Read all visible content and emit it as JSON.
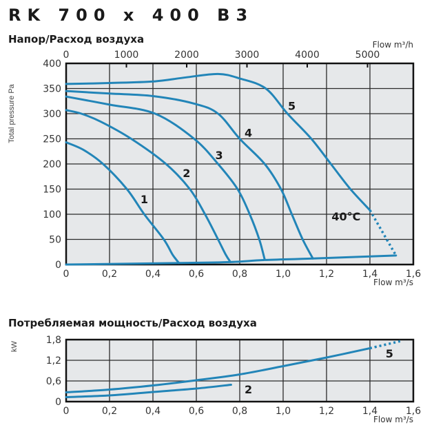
{
  "title": "RK 700 x 400 B3",
  "colors": {
    "curve": "#2285b8",
    "plot_bg": "#e6e8ea",
    "grid": "#2a2a2a"
  },
  "chart_data": [
    {
      "type": "line",
      "title": "Напор/Расход воздуха",
      "xlabel": "Flow m³/s",
      "ylabel": "Total pressure Pa",
      "x2label": "Flow m³/h",
      "xlim": [
        0,
        1.6
      ],
      "ylim": [
        0,
        400
      ],
      "grid": true,
      "xticks": [
        "0",
        "0,2",
        "0,4",
        "0,6",
        "0,8",
        "1,0",
        "1,2",
        "1,4",
        "1,6"
      ],
      "xtick_values": [
        0,
        0.2,
        0.4,
        0.6,
        0.8,
        1.0,
        1.2,
        1.4,
        1.6
      ],
      "yticks": [
        "0",
        "50",
        "100",
        "150",
        "200",
        "250",
        "300",
        "350",
        "400"
      ],
      "ytick_values": [
        0,
        50,
        100,
        150,
        200,
        250,
        300,
        350,
        400
      ],
      "x2ticks": [
        "0",
        "1000",
        "2000",
        "3000",
        "4000",
        "5000"
      ],
      "x2tick_values": [
        0,
        1000,
        2000,
        3000,
        4000,
        5000
      ],
      "series": [
        {
          "name": "1",
          "label_at": [
            0.36,
            130
          ],
          "points": [
            [
              0,
              243
            ],
            [
              0.08,
              228
            ],
            [
              0.17,
              200
            ],
            [
              0.28,
              150
            ],
            [
              0.36,
              100
            ],
            [
              0.45,
              50
            ],
            [
              0.49,
              20
            ],
            [
              0.52,
              3
            ]
          ]
        },
        {
          "name": "2",
          "label_at": [
            0.555,
            182
          ],
          "points": [
            [
              0,
              307
            ],
            [
              0.07,
              300
            ],
            [
              0.16,
              284
            ],
            [
              0.3,
              250
            ],
            [
              0.46,
              200
            ],
            [
              0.57,
              150
            ],
            [
              0.64,
              100
            ],
            [
              0.7,
              50
            ],
            [
              0.735,
              20
            ],
            [
              0.757,
              5
            ]
          ]
        },
        {
          "name": "3",
          "label_at": [
            0.705,
            218
          ],
          "points": [
            [
              0,
              334
            ],
            [
              0.2,
              318
            ],
            [
              0.41,
              300
            ],
            [
              0.59,
              250
            ],
            [
              0.7,
              200
            ],
            [
              0.79,
              150
            ],
            [
              0.846,
              100
            ],
            [
              0.89,
              50
            ],
            [
              0.915,
              10
            ]
          ]
        },
        {
          "name": "4",
          "label_at": [
            0.84,
            262
          ],
          "points": [
            [
              0,
              345
            ],
            [
              0.2,
              340
            ],
            [
              0.4,
              335
            ],
            [
              0.59,
              320
            ],
            [
              0.7,
              300
            ],
            [
              0.8,
              250
            ],
            [
              0.915,
              200
            ],
            [
              0.99,
              150
            ],
            [
              1.04,
              100
            ],
            [
              1.09,
              50
            ],
            [
              1.137,
              12
            ]
          ]
        },
        {
          "name": "5",
          "label_at": [
            1.04,
            316
          ],
          "points": [
            [
              0,
              359
            ],
            [
              0.2,
              361
            ],
            [
              0.4,
              364
            ],
            [
              0.55,
              372
            ],
            [
              0.7,
              379
            ],
            [
              0.8,
              370
            ],
            [
              0.92,
              350
            ],
            [
              1.02,
              300
            ],
            [
              1.13,
              250
            ],
            [
              1.22,
              200
            ],
            [
              1.31,
              150
            ],
            [
              1.4,
              108
            ]
          ],
          "dotted_extension": [
            [
              1.4,
              108
            ],
            [
              1.52,
              18
            ]
          ]
        },
        {
          "name": "",
          "points": [
            [
              0,
              0
            ],
            [
              0.52,
              3
            ],
            [
              0.757,
              5
            ],
            [
              0.915,
              9
            ],
            [
              1.137,
              12
            ],
            [
              1.52,
              18
            ]
          ]
        }
      ],
      "annotations": [
        {
          "text": "40°C",
          "at": [
            1.29,
            96
          ]
        }
      ]
    },
    {
      "type": "line",
      "title": "Потребляемая мощность/Расход воздуха",
      "xlabel": "Flow m³/s",
      "ylabel": "kW",
      "xlim": [
        0,
        1.6
      ],
      "ylim": [
        0,
        1.8
      ],
      "grid": true,
      "xticks": [
        "0",
        "0,2",
        "0,4",
        "0,6",
        "0,8",
        "1,0",
        "1,2",
        "1,4",
        "1,6"
      ],
      "xtick_values": [
        0,
        0.2,
        0.4,
        0.6,
        0.8,
        1.0,
        1.2,
        1.4,
        1.6
      ],
      "yticks": [
        "0",
        "0,6",
        "1,2",
        "1,8"
      ],
      "ytick_values": [
        0,
        0.6,
        1.2,
        1.8
      ],
      "series": [
        {
          "name": "2",
          "label_at": [
            0.84,
            0.36
          ],
          "points": [
            [
              0,
              0.13
            ],
            [
              0.2,
              0.18
            ],
            [
              0.4,
              0.28
            ],
            [
              0.6,
              0.38
            ],
            [
              0.76,
              0.49
            ]
          ]
        },
        {
          "name": "5",
          "label_at": [
            1.49,
            1.4
          ],
          "points": [
            [
              0,
              0.27
            ],
            [
              0.2,
              0.35
            ],
            [
              0.4,
              0.47
            ],
            [
              0.6,
              0.62
            ],
            [
              0.8,
              0.79
            ],
            [
              1.0,
              1.03
            ],
            [
              1.2,
              1.28
            ],
            [
              1.4,
              1.55
            ]
          ],
          "dotted_extension": [
            [
              1.4,
              1.55
            ],
            [
              1.55,
              1.77
            ]
          ]
        }
      ]
    }
  ]
}
